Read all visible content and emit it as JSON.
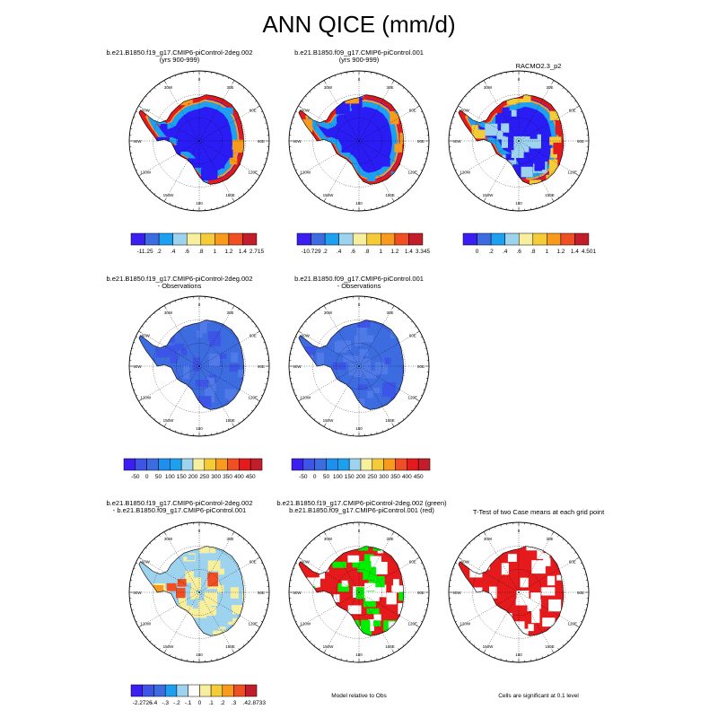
{
  "title": "ANN QICE (mm/d)",
  "colors": {
    "ice_blue": "#2a1cf5",
    "mid_blue": "#3d6be0",
    "light_blue": "#9ed3ef",
    "pale_yellow": "#f7ef9e",
    "orange": "#f79a1e",
    "red": "#e41a1c",
    "dark_red": "#c11d2a",
    "green": "#00ee00",
    "white": "#ffffff"
  },
  "panels": [
    {
      "id": "p1",
      "title_line1": "b.e21.B1850.f19_g17.CMIP6-piControl-2deg.002",
      "title_line2": "(yrs 900-999)",
      "style": "model"
    },
    {
      "id": "p2",
      "title_line1": "b.e21.B1850.f09_g17.CMIP6-piControl.001",
      "title_line2": "(yrs 900-999)",
      "style": "model"
    },
    {
      "id": "p3",
      "title_line1": "RACMO2.3_p2",
      "title_line2": "",
      "style": "obs"
    },
    {
      "id": "p4",
      "title_line1": "b.e21.B1850.f19_g17.CMIP6-piControl-2deg.002",
      "title_line2": "- Observations",
      "style": "bias"
    },
    {
      "id": "p5",
      "title_line1": "b.e21.B1850.f09_g17.CMIP6-piControl.001",
      "title_line2": "- Observations",
      "style": "bias"
    },
    {
      "id": "p6",
      "title_line1": "b.e21.B1850.f19_g17.CMIP6-piControl-2deg.002",
      "title_line2": "- b.e21.B1850.f09_g17.CMIP6-piControl.001",
      "style": "diff"
    },
    {
      "id": "p7",
      "title_line1": "b.e21.B1850.f19_g17.CMIP6-piControl-2deg.002 (green)",
      "title_line2": "b.e21.B1850.f09_g17.CMIP6-piControl.001 (red)",
      "style": "compare"
    },
    {
      "id": "p8",
      "title_line1": "T-Test of two Case means at each grid point",
      "title_line2": "",
      "style": "ttest"
    }
  ],
  "map_labels": {
    "meridians": [
      "0",
      "30E",
      "60E",
      "90E",
      "120E",
      "150E",
      "180",
      "150W",
      "120W",
      "90W",
      "60W",
      "30W"
    ]
  },
  "colorbars": [
    {
      "id": "cb1",
      "labels": [
        "-11.25",
        ".2",
        ".4",
        ".6",
        ".8",
        "1",
        "1.2",
        "1.4",
        "2.715"
      ],
      "colors": [
        "#3b1ff0",
        "#3d6be0",
        "#1ea0f0",
        "#9ed3ef",
        "#f7ef9e",
        "#f5cc38",
        "#f79a1e",
        "#f04e23",
        "#c11d2a"
      ]
    },
    {
      "id": "cb2",
      "labels": [
        "-10.729",
        ".2",
        ".4",
        ".6",
        ".8",
        "1",
        "1.2",
        "1.4",
        "3.345"
      ],
      "colors": [
        "#3b1ff0",
        "#3d6be0",
        "#1ea0f0",
        "#9ed3ef",
        "#f7ef9e",
        "#f5cc38",
        "#f79a1e",
        "#f04e23",
        "#c11d2a"
      ]
    },
    {
      "id": "cb3",
      "labels": [
        "0",
        ".2",
        ".4",
        ".6",
        ".8",
        "1",
        "1.2",
        "1.4",
        "4.501"
      ],
      "colors": [
        "#3b1ff0",
        "#3d6be0",
        "#1ea0f0",
        "#9ed3ef",
        "#f7ef9e",
        "#f5cc38",
        "#f79a1e",
        "#f04e23",
        "#c11d2a"
      ]
    },
    {
      "id": "cb4",
      "labels": [
        "-50",
        "0",
        "50",
        "100",
        "150",
        "200",
        "250",
        "300",
        "350",
        "400",
        "450"
      ],
      "colors": [
        "#3b1ff0",
        "#3d55e6",
        "#3d6be0",
        "#1e8fee",
        "#1ea0f0",
        "#9ed3ef",
        "#f7ef9e",
        "#f5cc38",
        "#f79a1e",
        "#f04e23",
        "#e41a1c",
        "#c11d2a"
      ]
    },
    {
      "id": "cb5",
      "labels": [
        "-50",
        "0",
        "50",
        "100",
        "150",
        "200",
        "250",
        "300",
        "350",
        "400",
        "450"
      ],
      "colors": [
        "#3b1ff0",
        "#3d55e6",
        "#3d6be0",
        "#1e8fee",
        "#1ea0f0",
        "#9ed3ef",
        "#f7ef9e",
        "#f5cc38",
        "#f79a1e",
        "#f04e23",
        "#e41a1c",
        "#c11d2a"
      ]
    },
    {
      "id": "cb6",
      "labels": [
        "-2.2726",
        "-.4",
        "-.3",
        "-.2",
        "-.1",
        "0",
        ".1",
        ".2",
        ".3",
        ".4",
        "2.8733"
      ],
      "colors": [
        "#3b1ff0",
        "#3d55e6",
        "#3d6be0",
        "#1ea0f0",
        "#9ed3ef",
        "#fdfdfd",
        "#f7ef9e",
        "#f5cc38",
        "#f79a1e",
        "#f04e23",
        "#c11d2a"
      ]
    }
  ],
  "footnotes": {
    "compare": "Model relative to Obs",
    "ttest": "Cells are significant at 0.1 level"
  },
  "chart_data": [
    {
      "type": "heatmap",
      "title": "b.e21.B1850.f19_g17.CMIP6-piControl-2deg.002 (yrs 900-999)",
      "projection": "south-polar stereographic",
      "colorbar": [
        "-11.25",
        ".2",
        ".4",
        ".6",
        ".8",
        "1",
        "1.2",
        "1.4",
        "2.715"
      ]
    },
    {
      "type": "heatmap",
      "title": "b.e21.B1850.f09_g17.CMIP6-piControl.001 (yrs 900-999)",
      "projection": "south-polar stereographic",
      "colorbar": [
        "-10.729",
        ".2",
        ".4",
        ".6",
        ".8",
        "1",
        "1.2",
        "1.4",
        "3.345"
      ]
    },
    {
      "type": "heatmap",
      "title": "RACMO2.3_p2",
      "projection": "south-polar stereographic",
      "colorbar": [
        "0",
        ".2",
        ".4",
        ".6",
        ".8",
        "1",
        "1.2",
        "1.4",
        "4.501"
      ]
    },
    {
      "type": "heatmap",
      "title": "b.e21.B1850.f19_g17.CMIP6-piControl-2deg.002 - Observations",
      "projection": "south-polar stereographic",
      "colorbar": [
        "-50",
        "0",
        "50",
        "100",
        "150",
        "200",
        "250",
        "300",
        "350",
        "400",
        "450"
      ]
    },
    {
      "type": "heatmap",
      "title": "b.e21.B1850.f09_g17.CMIP6-piControl.001 - Observations",
      "projection": "south-polar stereographic",
      "colorbar": [
        "-50",
        "0",
        "50",
        "100",
        "150",
        "200",
        "250",
        "300",
        "350",
        "400",
        "450"
      ]
    },
    {
      "type": "heatmap",
      "title": "b.e21.B1850.f19_g17.CMIP6-piControl-2deg.002 - b.e21.B1850.f09_g17.CMIP6-piControl.001",
      "projection": "south-polar stereographic",
      "colorbar": [
        "-2.2726",
        "-.4",
        "-.3",
        "-.2",
        "-.1",
        "0",
        ".1",
        ".2",
        ".3",
        ".4",
        "2.8733"
      ]
    },
    {
      "type": "heatmap",
      "title": "Model relative to Obs",
      "projection": "south-polar stereographic",
      "legend": [
        "green",
        "red"
      ]
    },
    {
      "type": "heatmap",
      "title": "T-Test of two Case means at each grid point",
      "projection": "south-polar stereographic",
      "note": "Cells are significant at 0.1 level"
    }
  ]
}
